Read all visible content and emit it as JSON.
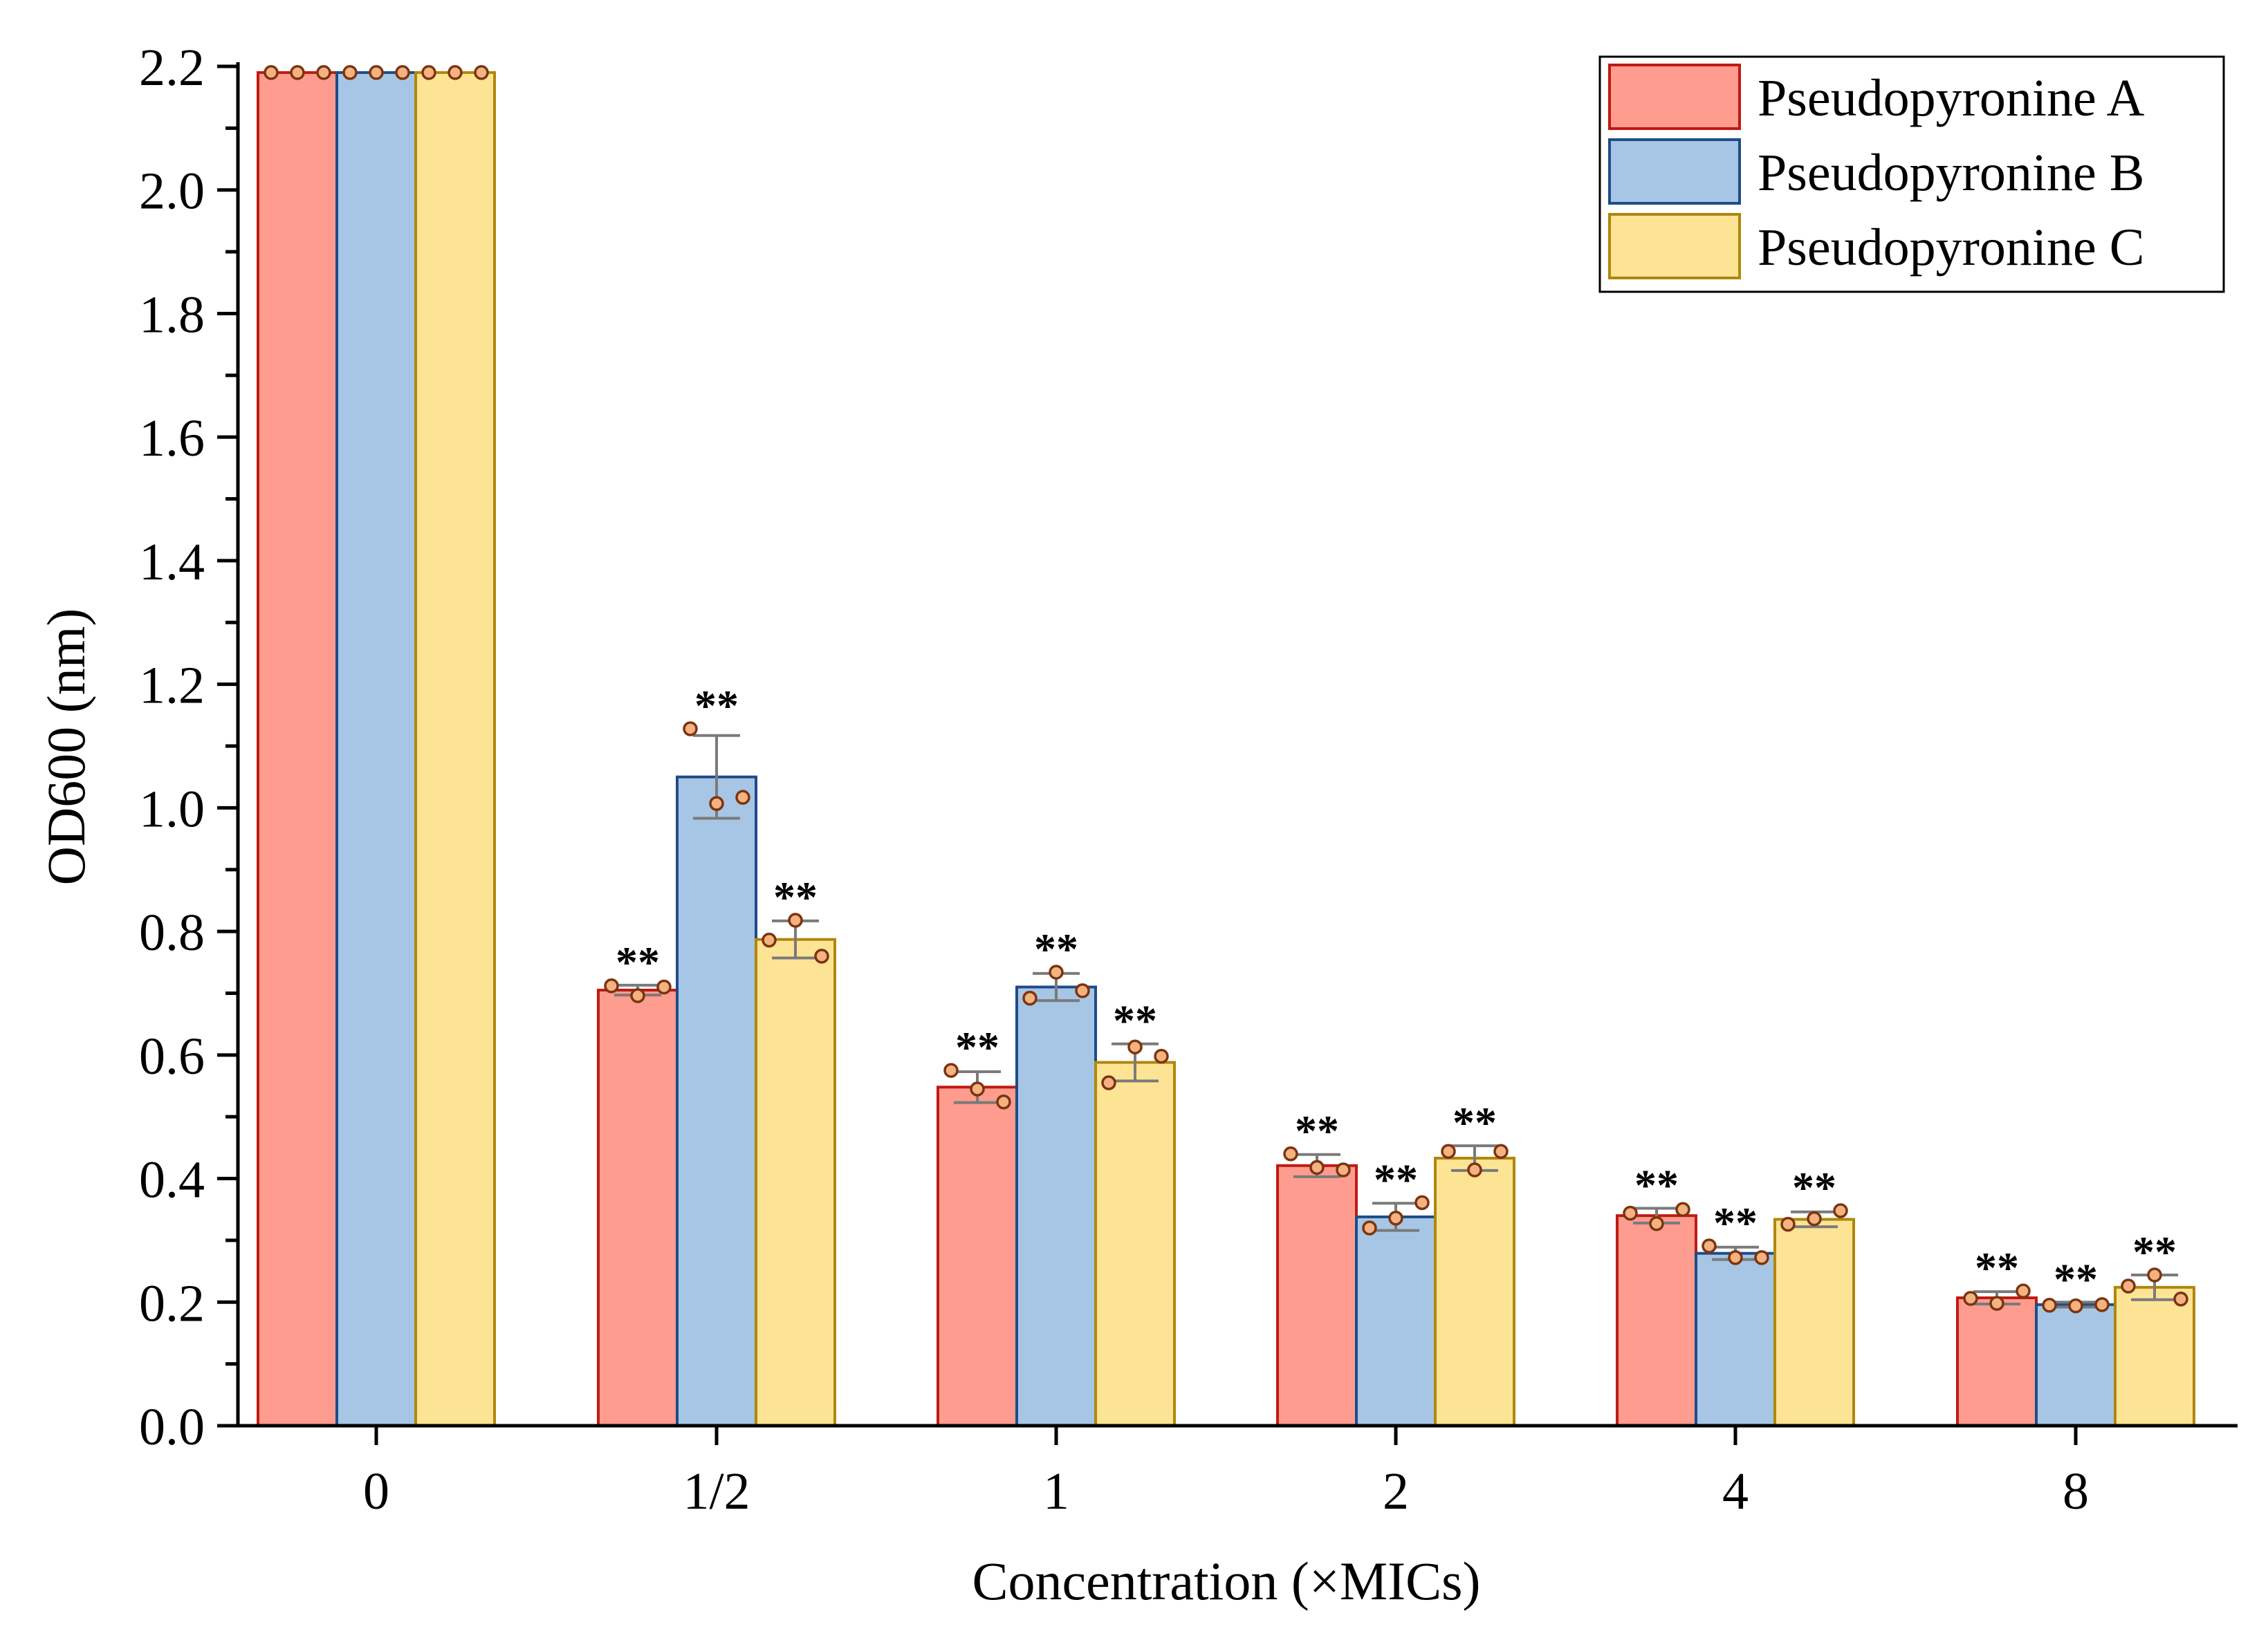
{
  "chart_data": {
    "type": "bar",
    "title": "",
    "xlabel": "Concentration (×MICs)",
    "ylabel": "OD600 (nm)",
    "ylim": [
      0,
      2.2
    ],
    "yticks": [
      "0.0",
      "0.2",
      "0.4",
      "0.6",
      "0.8",
      "1.0",
      "1.2",
      "1.4",
      "1.6",
      "1.8",
      "2.0",
      "2.2"
    ],
    "categories": [
      "0",
      "1/2",
      "1",
      "2",
      "4",
      "8"
    ],
    "series": [
      {
        "name": "Pseudopyronine A",
        "fill": "#fd9c8f",
        "stroke": "#c01a12",
        "values": [
          2.19,
          0.705,
          0.548,
          0.421,
          0.34,
          0.207
        ],
        "errors": [
          0.0,
          0.008,
          0.025,
          0.018,
          0.012,
          0.01
        ],
        "points": [
          [
            2.19,
            2.19,
            2.19
          ],
          [
            0.712,
            0.696,
            0.71
          ],
          [
            0.575,
            0.545,
            0.524
          ],
          [
            0.44,
            0.418,
            0.414
          ],
          [
            0.344,
            0.327,
            0.35
          ],
          [
            0.206,
            0.198,
            0.218
          ]
        ],
        "significance": [
          "",
          "**",
          "**",
          "**",
          "**",
          "**"
        ]
      },
      {
        "name": "Pseudopyronine B",
        "fill": "#a7c6e5",
        "stroke": "#1e4c88",
        "values": [
          2.19,
          1.05,
          0.71,
          0.338,
          0.279,
          0.196
        ],
        "errors": [
          0.0,
          0.067,
          0.022,
          0.022,
          0.01,
          0.004
        ],
        "points": [
          [
            2.19,
            2.19,
            2.19
          ],
          [
            1.128,
            1.007,
            1.017
          ],
          [
            0.692,
            0.734,
            0.704
          ],
          [
            0.32,
            0.336,
            0.361
          ],
          [
            0.291,
            0.272,
            0.272
          ],
          [
            0.195,
            0.194,
            0.196
          ]
        ],
        "significance": [
          "",
          "**",
          "**",
          "**",
          "**",
          "**"
        ]
      },
      {
        "name": "Pseudopyronine C",
        "fill": "#fde495",
        "stroke": "#b0870c",
        "values": [
          2.19,
          0.787,
          0.588,
          0.433,
          0.334,
          0.224
        ],
        "errors": [
          0.0,
          0.03,
          0.03,
          0.02,
          0.012,
          0.02
        ],
        "points": [
          [
            2.19,
            2.19,
            2.19
          ],
          [
            0.786,
            0.818,
            0.76
          ],
          [
            0.555,
            0.613,
            0.598
          ],
          [
            0.444,
            0.414,
            0.444
          ],
          [
            0.326,
            0.335,
            0.348
          ],
          [
            0.226,
            0.244,
            0.205
          ]
        ],
        "significance": [
          "",
          "**",
          "**",
          "**",
          "**",
          "**"
        ]
      }
    ],
    "legend_position": "top-right",
    "errorbar_color": "#7a7a7a",
    "point_stroke": "#7b3410",
    "point_fill": "#f3b27f"
  }
}
